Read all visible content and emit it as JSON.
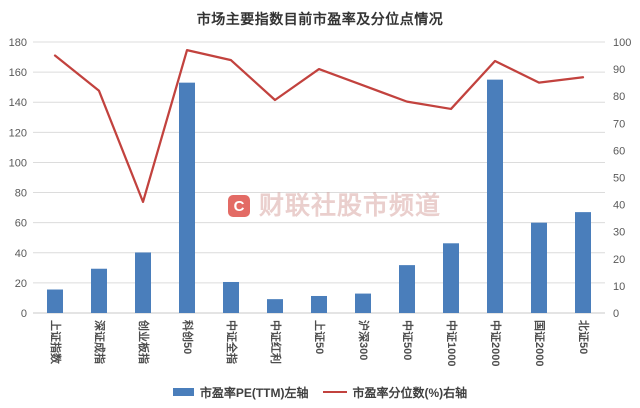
{
  "title": "市场主要指数目前市盈率及分位点情况",
  "watermark": {
    "badge": "C",
    "text": "财联社股市频道"
  },
  "colors": {
    "bar": "#4a7ebb",
    "line": "#c2423e",
    "grid": "#dcdcdc",
    "axis_line": "#c8c8c8",
    "tick_text": "#595959",
    "category_text": "#4d4d4d",
    "title_text": "#333333",
    "watermark_badge": "#d93a32"
  },
  "chart_data": {
    "type": "combo (bar + line)",
    "title": "市场主要指数目前市盈率及分位点情况",
    "categories": [
      "上证指数",
      "深证成指",
      "创业板指",
      "科创50",
      "中证全指",
      "中证红利",
      "上证50",
      "沪深300",
      "中证500",
      "中证1000",
      "中证2000",
      "国证2000",
      "北证50"
    ],
    "series": [
      {
        "name": "市盈率PE(TTM)左轴",
        "type": "bar",
        "axis": "left",
        "color": "#4a7ebb",
        "values": [
          15.6,
          29.4,
          40.2,
          153,
          20.6,
          9.2,
          11.3,
          12.9,
          31.8,
          46.3,
          155,
          60,
          67
        ]
      },
      {
        "name": "市盈率分位数(%)右轴",
        "type": "line",
        "axis": "right",
        "color": "#c2423e",
        "values": [
          95,
          82,
          41,
          97,
          93.3,
          78.6,
          90,
          84,
          78,
          75.3,
          93,
          85,
          87
        ]
      }
    ],
    "left_axis": {
      "min": 0,
      "max": 180,
      "step": 20,
      "tick_labels": [
        "0",
        "20",
        "40",
        "60",
        "80",
        "100",
        "120",
        "140",
        "160",
        "180"
      ]
    },
    "right_axis": {
      "min": 0,
      "max": 100,
      "step": 10,
      "tick_labels": [
        "0",
        "10",
        "20",
        "30",
        "40",
        "50",
        "60",
        "70",
        "80",
        "90",
        "100"
      ]
    },
    "grid": "horizontal only, aligned to left axis",
    "legend_position": "bottom",
    "x_label_rotation": "90deg clockwise (vertical)"
  }
}
